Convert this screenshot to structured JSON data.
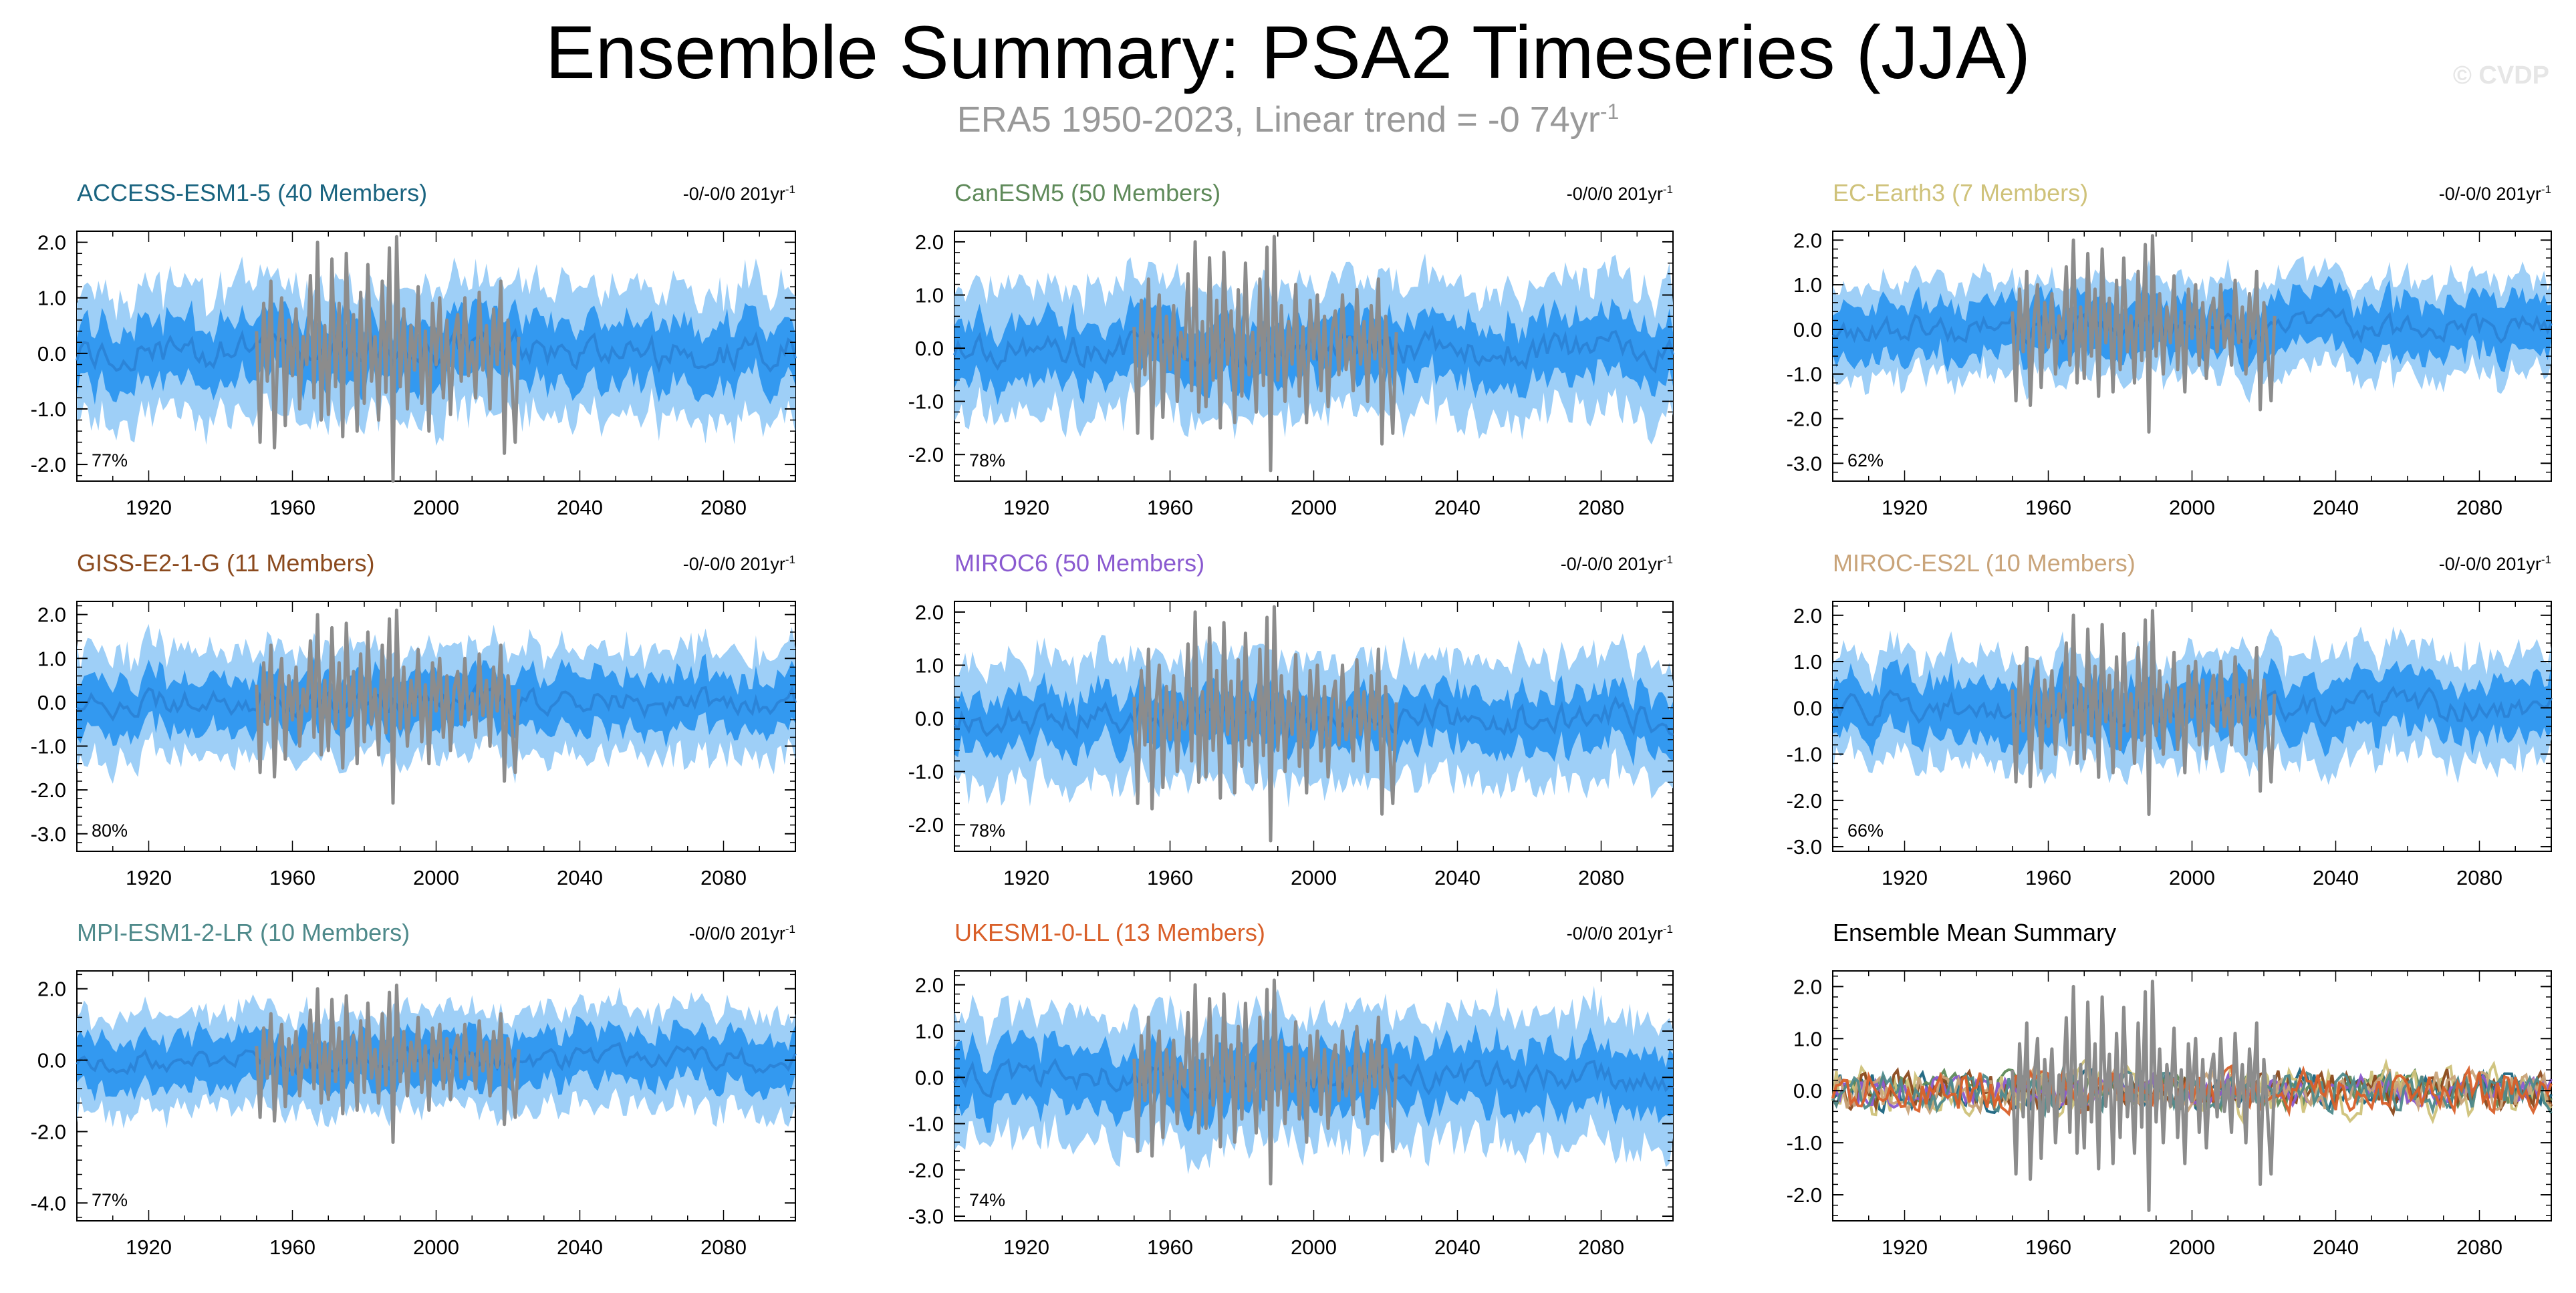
{
  "header": {
    "title": "Ensemble Summary: PSA2 Timeseries (JJA)",
    "subtitle": "ERA5 1950-2023, Linear trend = -0 74yr",
    "subtitle_exponent": "-1",
    "watermark": "© CVDP"
  },
  "colors": {
    "outer_band": "#9ecff7",
    "inner_band": "#3399f0",
    "ensemble_mean": "#2b84d8",
    "observations": "#8c8c8c"
  },
  "chart_data": [
    {
      "id": "p1",
      "type": "area",
      "title": "ACCESS-ESM1-5 (40 Members)",
      "title_color": "#1a6480",
      "trend_label": "-0/-0/0 201yr",
      "trend_exponent": "-1",
      "percent_label": "77%",
      "ylim": [
        -2.3,
        2.2
      ],
      "yticks": [
        -2,
        -1,
        0,
        1,
        2
      ],
      "ytick_labels": [
        "-2.0",
        "-1.0",
        "0.0",
        "1.0",
        "2.0"
      ],
      "xlim": [
        1900,
        2100
      ],
      "xticks": [
        1920,
        1960,
        2000,
        2040,
        2080
      ],
      "xtick_labels": [
        "1920",
        "1960",
        "2000",
        "2040",
        "2080"
      ],
      "outer_halfwidth": 1.1,
      "inner_halfwidth": 0.55,
      "seed": 11
    },
    {
      "id": "p2",
      "type": "area",
      "title": "CanESM5 (50 Members)",
      "title_color": "#5f8a5a",
      "trend_label": "-0/0/0 201yr",
      "trend_exponent": "-1",
      "percent_label": "78%",
      "ylim": [
        -2.5,
        2.2
      ],
      "yticks": [
        -2,
        -1,
        0,
        1,
        2
      ],
      "ytick_labels": [
        "-2.0",
        "-1.0",
        "0.0",
        "1.0",
        "2.0"
      ],
      "xlim": [
        1900,
        2100
      ],
      "xticks": [
        1920,
        1960,
        2000,
        2040,
        2080
      ],
      "xtick_labels": [
        "1920",
        "1960",
        "2000",
        "2040",
        "2080"
      ],
      "outer_halfwidth": 1.15,
      "inner_halfwidth": 0.55,
      "seed": 23
    },
    {
      "id": "p3",
      "type": "area",
      "title": "EC-Earth3 (7 Members)",
      "title_color": "#cfc27a",
      "trend_label": "-0/-0/0 201yr",
      "trend_exponent": "-1",
      "percent_label": "62%",
      "ylim": [
        -3.4,
        2.2
      ],
      "yticks": [
        -3,
        -2,
        -1,
        0,
        1,
        2
      ],
      "ytick_labels": [
        "-3.0",
        "-2.0",
        "-1.0",
        "0.0",
        "1.0",
        "2.0"
      ],
      "xlim": [
        1900,
        2100
      ],
      "xticks": [
        1920,
        1960,
        2000,
        2040,
        2080
      ],
      "xtick_labels": [
        "1920",
        "1960",
        "2000",
        "2040",
        "2080"
      ],
      "outer_halfwidth": 1.0,
      "inner_halfwidth": 0.6,
      "seed": 37
    },
    {
      "id": "p4",
      "type": "area",
      "title": "GISS-E2-1-G (11 Members)",
      "title_color": "#8b4a1e",
      "trend_label": "-0/-0/0 201yr",
      "trend_exponent": "-1",
      "percent_label": "80%",
      "ylim": [
        -3.4,
        2.3
      ],
      "yticks": [
        -3,
        -2,
        -1,
        0,
        1,
        2
      ],
      "ytick_labels": [
        "-3.0",
        "-2.0",
        "-1.0",
        "0.0",
        "1.0",
        "2.0"
      ],
      "xlim": [
        1900,
        2100
      ],
      "xticks": [
        1920,
        1960,
        2000,
        2040,
        2080
      ],
      "xtick_labels": [
        "1920",
        "1960",
        "2000",
        "2040",
        "2080"
      ],
      "outer_halfwidth": 1.15,
      "inner_halfwidth": 0.6,
      "seed": 41
    },
    {
      "id": "p5",
      "type": "area",
      "title": "MIROC6 (50 Members)",
      "title_color": "#8a5ad0",
      "trend_label": "-0/-0/0 201yr",
      "trend_exponent": "-1",
      "percent_label": "78%",
      "ylim": [
        -2.5,
        2.2
      ],
      "yticks": [
        -2,
        -1,
        0,
        1,
        2
      ],
      "ytick_labels": [
        "-2.0",
        "-1.0",
        "0.0",
        "1.0",
        "2.0"
      ],
      "xlim": [
        1900,
        2100
      ],
      "xticks": [
        1920,
        1960,
        2000,
        2040,
        2080
      ],
      "xtick_labels": [
        "1920",
        "1960",
        "2000",
        "2040",
        "2080"
      ],
      "outer_halfwidth": 1.1,
      "inner_halfwidth": 0.5,
      "seed": 53
    },
    {
      "id": "p6",
      "type": "area",
      "title": "MIROC-ES2L (10 Members)",
      "title_color": "#c9a47a",
      "trend_label": "-0/-0/0 201yr",
      "trend_exponent": "-1",
      "percent_label": "66%",
      "ylim": [
        -3.1,
        2.3
      ],
      "yticks": [
        -3,
        -2,
        -1,
        0,
        1,
        2
      ],
      "ytick_labels": [
        "-3.0",
        "-2.0",
        "-1.0",
        "0.0",
        "1.0",
        "2.0"
      ],
      "xlim": [
        1900,
        2100
      ],
      "xticks": [
        1920,
        1960,
        2000,
        2040,
        2080
      ],
      "xtick_labels": [
        "1920",
        "1960",
        "2000",
        "2040",
        "2080"
      ],
      "outer_halfwidth": 1.1,
      "inner_halfwidth": 0.6,
      "seed": 67
    },
    {
      "id": "p7",
      "type": "area",
      "title": "MPI-ESM1-2-LR (10 Members)",
      "title_color": "#4f8a8b",
      "trend_label": "-0/0/0 201yr",
      "trend_exponent": "-1",
      "percent_label": "77%",
      "ylim": [
        -4.5,
        2.5
      ],
      "yticks": [
        -4,
        -2,
        0,
        2
      ],
      "ytick_labels": [
        "-4.0",
        "-2.0",
        "0.0",
        "2.0"
      ],
      "xlim": [
        1900,
        2100
      ],
      "xticks": [
        1920,
        1960,
        2000,
        2040,
        2080
      ],
      "xtick_labels": [
        "1920",
        "1960",
        "2000",
        "2040",
        "2080"
      ],
      "outer_halfwidth": 1.3,
      "inner_halfwidth": 0.7,
      "seed": 79
    },
    {
      "id": "p8",
      "type": "area",
      "title": "UKESM1-0-LL (13 Members)",
      "title_color": "#d9602a",
      "trend_label": "-0/0/0 201yr",
      "trend_exponent": "-1",
      "percent_label": "74%",
      "ylim": [
        -3.1,
        2.3
      ],
      "yticks": [
        -3,
        -2,
        -1,
        0,
        1,
        2
      ],
      "ytick_labels": [
        "-3.0",
        "-2.0",
        "-1.0",
        "0.0",
        "1.0",
        "2.0"
      ],
      "xlim": [
        1900,
        2100
      ],
      "xticks": [
        1920,
        1960,
        2000,
        2040,
        2080
      ],
      "xtick_labels": [
        "1920",
        "1960",
        "2000",
        "2040",
        "2080"
      ],
      "outer_halfwidth": 1.3,
      "inner_halfwidth": 0.65,
      "seed": 83
    },
    {
      "id": "p9",
      "type": "line",
      "title": "Ensemble Mean Summary",
      "title_color": "#000000",
      "ylim": [
        -2.5,
        2.3
      ],
      "yticks": [
        -2,
        -1,
        0,
        1,
        2
      ],
      "ytick_labels": [
        "-2.0",
        "-1.0",
        "0.0",
        "1.0",
        "2.0"
      ],
      "xlim": [
        1900,
        2100
      ],
      "xticks": [
        1920,
        1960,
        2000,
        2040,
        2080
      ],
      "xtick_labels": [
        "1920",
        "1960",
        "2000",
        "2040",
        "2080"
      ],
      "series": [
        {
          "name": "ACCESS-ESM1-5",
          "color": "#1a6480",
          "amplitude": 0.35,
          "seed": 101
        },
        {
          "name": "CanESM5",
          "color": "#5f8a5a",
          "amplitude": 0.3,
          "seed": 103
        },
        {
          "name": "EC-Earth3",
          "color": "#cfc27a",
          "amplitude": 0.45,
          "seed": 107
        },
        {
          "name": "GISS-E2-1-G",
          "color": "#8b4a1e",
          "amplitude": 0.35,
          "seed": 109
        },
        {
          "name": "MIROC6",
          "color": "#8a5ad0",
          "amplitude": 0.25,
          "seed": 113
        },
        {
          "name": "MIROC-ES2L",
          "color": "#c9a47a",
          "amplitude": 0.35,
          "seed": 127
        },
        {
          "name": "MPI-ESM1-2-LR",
          "color": "#4f8a8b",
          "amplitude": 0.35,
          "seed": 131
        },
        {
          "name": "UKESM1-0-LL",
          "color": "#d9602a",
          "amplitude": 0.35,
          "seed": 137
        }
      ]
    }
  ],
  "observations": {
    "name": "ERA5",
    "years": [
      1950,
      1951,
      1952,
      1953,
      1954,
      1955,
      1956,
      1957,
      1958,
      1959,
      1960,
      1961,
      1962,
      1963,
      1964,
      1965,
      1966,
      1967,
      1968,
      1969,
      1970,
      1971,
      1972,
      1973,
      1974,
      1975,
      1976,
      1977,
      1978,
      1979,
      1980,
      1981,
      1982,
      1983,
      1984,
      1985,
      1986,
      1987,
      1988,
      1989,
      1990,
      1991,
      1992,
      1993,
      1994,
      1995,
      1996,
      1997,
      1998,
      1999,
      2000,
      2001,
      2002,
      2003,
      2004,
      2005,
      2006,
      2007,
      2008,
      2009,
      2010,
      2011,
      2012,
      2013,
      2014,
      2015,
      2016,
      2017,
      2018,
      2019,
      2020,
      2021,
      2022,
      2023
    ],
    "values": [
      0.4,
      -1.6,
      0.9,
      -0.5,
      1.3,
      -1.7,
      0.2,
      1.0,
      -1.3,
      0.6,
      -0.4,
      0.8,
      -1.0,
      0.3,
      -0.2,
      1.4,
      -0.8,
      2.0,
      -1.2,
      0.5,
      -1.1,
      1.7,
      -0.6,
      0.9,
      -1.5,
      1.8,
      -0.3,
      0.7,
      -1.4,
      1.1,
      -0.9,
      1.6,
      -0.5,
      0.3,
      -1.2,
      1.3,
      -0.7,
      1.9,
      -2.3,
      2.1,
      -0.6,
      0.8,
      -1.0,
      0.5,
      -0.3,
      1.2,
      -0.9,
      0.4,
      -1.4,
      0.9,
      -0.2,
      1.0,
      -0.8,
      0.6,
      -1.1,
      0.3,
      0.7,
      -0.5,
      1.0,
      -0.4,
      0.2,
      -0.8,
      1.1,
      -0.3,
      0.5,
      -1.0,
      0.8,
      -0.2,
      1.3,
      -1.8,
      0.6,
      -0.4,
      -1.6,
      0.3
    ]
  }
}
